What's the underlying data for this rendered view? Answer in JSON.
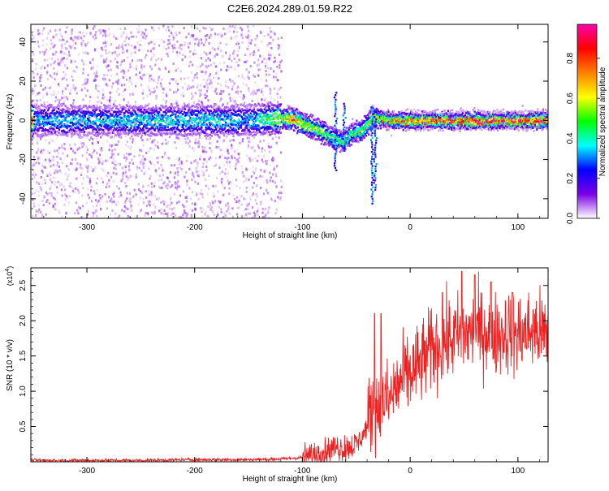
{
  "page": {
    "title": "C2E6.2024.289.01.59.R22"
  },
  "chart_data": [
    {
      "type": "heatmap",
      "xlabel": "Height of straight line (km)",
      "ylabel": "Frequency (Hz)",
      "xlim": [
        -352,
        128
      ],
      "ylim": [
        -50,
        49
      ],
      "xticks": [
        -300,
        -200,
        -100,
        0,
        100
      ],
      "yticks": [
        -40,
        -20,
        0,
        20,
        40
      ],
      "grid": false,
      "colorbar": {
        "label": "Normalized spectral amplitude",
        "range": [
          0,
          0.97
        ],
        "ticks": [
          "0.0",
          "0.2",
          "0.4",
          "0.6",
          "0.8"
        ],
        "colormap": [
          "#ffffff",
          "#7b00e6",
          "#0000ff",
          "#00ffff",
          "#00ff00",
          "#ffff00",
          "#ff7f00",
          "#ff0000",
          "#ff00aa"
        ]
      },
      "ridge": [
        {
          "x": -350,
          "y": 0.5,
          "amp": 0.35
        },
        {
          "x": -300,
          "y": 0.5,
          "amp": 0.35
        },
        {
          "x": -250,
          "y": 0.5,
          "amp": 0.38
        },
        {
          "x": -200,
          "y": 0.5,
          "amp": 0.38
        },
        {
          "x": -150,
          "y": 0.5,
          "amp": 0.35
        },
        {
          "x": -125,
          "y": 1.5,
          "amp": 0.55
        },
        {
          "x": -110,
          "y": 1.5,
          "amp": 0.72
        },
        {
          "x": -100,
          "y": -1.5,
          "amp": 0.6
        },
        {
          "x": -90,
          "y": -3.5,
          "amp": 0.55
        },
        {
          "x": -80,
          "y": -6.0,
          "amp": 0.5
        },
        {
          "x": -70,
          "y": -9.0,
          "amp": 0.45
        },
        {
          "x": -62,
          "y": -10.0,
          "amp": 0.45
        },
        {
          "x": -55,
          "y": -6.0,
          "amp": 0.45
        },
        {
          "x": -45,
          "y": -4.5,
          "amp": 0.5
        },
        {
          "x": -35,
          "y": 2.0,
          "amp": 0.6
        },
        {
          "x": -20,
          "y": 0.5,
          "amp": 0.75
        },
        {
          "x": 0,
          "y": 0.5,
          "amp": 0.82
        },
        {
          "x": 50,
          "y": 0.5,
          "amp": 0.85
        },
        {
          "x": 100,
          "y": 0.5,
          "amp": 0.85
        },
        {
          "x": 128,
          "y": 0.5,
          "amp": 0.85
        }
      ]
    },
    {
      "type": "line",
      "xlabel": "Height of straight line (km)",
      "ylabel": "SNR (10 * v/v)",
      "yscale_label": "(x10",
      "yscale_exp": "4",
      "yscale_close": ")",
      "xlim": [
        -352,
        128
      ],
      "ylim": [
        0,
        2.75
      ],
      "xticks": [
        -300,
        -200,
        -100,
        0,
        100
      ],
      "yticks": [
        "0.5",
        "1.0",
        "1.5",
        "2.0",
        "2.5"
      ],
      "ytick_values": [
        0.5,
        1.0,
        1.5,
        2.0,
        2.5
      ],
      "grid": false,
      "series": [
        {
          "color": "#ee2020",
          "x": [
            -352,
            -300,
            -250,
            -200,
            -150,
            -120,
            -100,
            -90,
            -80,
            -70,
            -60,
            -50,
            -45,
            -40,
            -35,
            -30,
            -25,
            -20,
            -15,
            -10,
            -5,
            0,
            10,
            20,
            30,
            40,
            50,
            60,
            70,
            80,
            90,
            100,
            110,
            120,
            128
          ],
          "y": [
            0.02,
            0.02,
            0.02,
            0.03,
            0.03,
            0.04,
            0.06,
            0.1,
            0.15,
            0.2,
            0.2,
            0.25,
            0.35,
            0.5,
            0.8,
            0.75,
            0.9,
            0.85,
            1.0,
            1.1,
            1.2,
            1.25,
            1.4,
            1.6,
            1.7,
            1.75,
            1.8,
            1.85,
            1.85,
            1.8,
            1.85,
            1.8,
            1.85,
            1.85,
            1.8
          ],
          "peaks": [
            {
              "x": -33,
              "y": 2.1
            },
            {
              "x": -27,
              "y": 2.1
            },
            {
              "x": 30,
              "y": 2.4
            },
            {
              "x": 48,
              "y": 2.7
            },
            {
              "x": 60,
              "y": 2.65
            },
            {
              "x": 75,
              "y": 2.55
            },
            {
              "x": 95,
              "y": 2.4
            }
          ]
        }
      ]
    }
  ]
}
